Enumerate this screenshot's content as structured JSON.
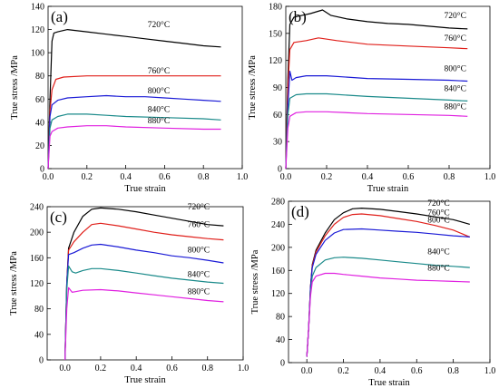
{
  "chart_data": [
    {
      "type": "line",
      "panel_label": "(a)",
      "xlabel": "True strain",
      "ylabel": "True stress /MPa",
      "xlim": [
        0,
        1.0
      ],
      "ylim": [
        0,
        140
      ],
      "xticks": [
        "0.0",
        "0.2",
        "0.4",
        "0.6",
        "0.8",
        "1.0"
      ],
      "yticks": [
        "0",
        "20",
        "40",
        "60",
        "80",
        "100",
        "120",
        "140"
      ],
      "series": [
        {
          "name": "720°C",
          "color": "#000000",
          "x": [
            0,
            0.01,
            0.02,
            0.03,
            0.05,
            0.1,
            0.2,
            0.3,
            0.4,
            0.5,
            0.6,
            0.7,
            0.8,
            0.89
          ],
          "y": [
            0,
            60,
            110,
            117,
            118,
            120,
            118,
            116,
            114,
            112,
            110,
            108,
            106,
            105
          ]
        },
        {
          "name": "760°C",
          "color": "#e0201b",
          "x": [
            0,
            0.01,
            0.02,
            0.04,
            0.08,
            0.2,
            0.4,
            0.6,
            0.8,
            0.89
          ],
          "y": [
            0,
            50,
            68,
            77,
            79,
            80,
            80,
            80,
            80,
            80
          ]
        },
        {
          "name": "800°C",
          "color": "#1a1ad6",
          "x": [
            0,
            0.01,
            0.02,
            0.05,
            0.1,
            0.2,
            0.3,
            0.4,
            0.5,
            0.6,
            0.7,
            0.8,
            0.89
          ],
          "y": [
            0,
            45,
            55,
            59,
            61,
            62,
            63,
            62,
            62,
            61,
            60,
            59,
            58
          ]
        },
        {
          "name": "840°C",
          "color": "#1a8a8a",
          "x": [
            0,
            0.01,
            0.02,
            0.05,
            0.1,
            0.2,
            0.3,
            0.4,
            0.6,
            0.8,
            0.89
          ],
          "y": [
            0,
            35,
            42,
            45,
            47,
            47,
            46,
            45,
            44,
            43,
            42
          ]
        },
        {
          "name": "880°C",
          "color": "#e020e0",
          "x": [
            0,
            0.01,
            0.02,
            0.05,
            0.1,
            0.2,
            0.3,
            0.4,
            0.6,
            0.8,
            0.89
          ],
          "y": [
            0,
            28,
            32,
            35,
            36,
            37,
            37,
            36,
            35,
            34,
            34
          ]
        }
      ],
      "labels": [
        "720°C",
        "760°C",
        "800°C",
        "840°C",
        "880°C"
      ]
    },
    {
      "type": "line",
      "panel_label": "(b)",
      "xlabel": "True strain",
      "ylabel": "True stress /MPa",
      "xlim": [
        0,
        1.0
      ],
      "ylim": [
        0,
        180
      ],
      "xticks": [
        "0.0",
        "0.2",
        "0.4",
        "0.6",
        "0.8",
        "1.0"
      ],
      "yticks": [
        "0",
        "30",
        "60",
        "90",
        "120",
        "150",
        "180"
      ],
      "series": [
        {
          "name": "720°C",
          "color": "#000000",
          "x": [
            0,
            0.01,
            0.02,
            0.04,
            0.08,
            0.12,
            0.18,
            0.22,
            0.3,
            0.4,
            0.5,
            0.6,
            0.7,
            0.8,
            0.89
          ],
          "y": [
            0,
            100,
            160,
            168,
            170,
            172,
            176,
            170,
            166,
            163,
            161,
            160,
            158,
            156,
            155
          ]
        },
        {
          "name": "760°C",
          "color": "#e0201b",
          "x": [
            0,
            0.01,
            0.02,
            0.04,
            0.1,
            0.16,
            0.25,
            0.4,
            0.6,
            0.8,
            0.89
          ],
          "y": [
            0,
            90,
            132,
            140,
            142,
            145,
            142,
            138,
            136,
            134,
            133
          ]
        },
        {
          "name": "800°C",
          "color": "#1a1ad6",
          "x": [
            0,
            0.01,
            0.02,
            0.03,
            0.05,
            0.1,
            0.2,
            0.4,
            0.6,
            0.8,
            0.89
          ],
          "y": [
            0,
            70,
            108,
            98,
            101,
            103,
            103,
            100,
            99,
            98,
            97
          ]
        },
        {
          "name": "840°C",
          "color": "#1a8a8a",
          "x": [
            0,
            0.01,
            0.02,
            0.05,
            0.1,
            0.2,
            0.4,
            0.6,
            0.8,
            0.89
          ],
          "y": [
            0,
            60,
            78,
            82,
            83,
            83,
            80,
            78,
            76,
            75
          ]
        },
        {
          "name": "880°C",
          "color": "#e020e0",
          "x": [
            0,
            0.01,
            0.02,
            0.05,
            0.1,
            0.2,
            0.4,
            0.6,
            0.8,
            0.89
          ],
          "y": [
            0,
            45,
            58,
            62,
            63,
            63,
            61,
            60,
            59,
            58
          ]
        }
      ],
      "labels": [
        "720°C",
        "760°C",
        "800°C",
        "840°C",
        "880°C"
      ]
    },
    {
      "type": "line",
      "panel_label": "(c)",
      "xlabel": "True strain",
      "ylabel": "True stress /MPa",
      "xlim": [
        -0.1,
        1.0
      ],
      "ylim": [
        0,
        240
      ],
      "xticks": [
        "0.0",
        "0.2",
        "0.4",
        "0.6",
        "0.8",
        "1.0"
      ],
      "yticks": [
        "0",
        "40",
        "80",
        "120",
        "160",
        "200",
        "240"
      ],
      "series": [
        {
          "name": "720°C",
          "color": "#000000",
          "x": [
            0,
            0.01,
            0.02,
            0.05,
            0.1,
            0.15,
            0.2,
            0.3,
            0.4,
            0.5,
            0.6,
            0.7,
            0.8,
            0.89
          ],
          "y": [
            0,
            120,
            175,
            200,
            225,
            236,
            238,
            236,
            232,
            227,
            222,
            217,
            212,
            210
          ]
        },
        {
          "name": "760°C",
          "color": "#e0201b",
          "x": [
            0,
            0.01,
            0.02,
            0.05,
            0.1,
            0.15,
            0.2,
            0.3,
            0.4,
            0.5,
            0.6,
            0.7,
            0.8,
            0.89
          ],
          "y": [
            0,
            120,
            172,
            185,
            200,
            212,
            214,
            210,
            205,
            200,
            196,
            193,
            190,
            188
          ]
        },
        {
          "name": "800°C",
          "color": "#1a1ad6",
          "x": [
            0,
            0.01,
            0.02,
            0.05,
            0.1,
            0.15,
            0.2,
            0.3,
            0.4,
            0.5,
            0.6,
            0.7,
            0.8,
            0.89
          ],
          "y": [
            0,
            120,
            165,
            168,
            175,
            180,
            181,
            177,
            172,
            168,
            163,
            160,
            156,
            152
          ]
        },
        {
          "name": "840°C",
          "color": "#1a8a8a",
          "x": [
            0,
            0.01,
            0.02,
            0.04,
            0.06,
            0.1,
            0.15,
            0.2,
            0.3,
            0.4,
            0.5,
            0.6,
            0.7,
            0.8,
            0.89
          ],
          "y": [
            0,
            110,
            147,
            138,
            136,
            140,
            143,
            143,
            140,
            136,
            132,
            128,
            125,
            122,
            120
          ]
        },
        {
          "name": "880°C",
          "color": "#e020e0",
          "x": [
            0,
            0.01,
            0.02,
            0.04,
            0.06,
            0.1,
            0.2,
            0.3,
            0.4,
            0.5,
            0.6,
            0.7,
            0.8,
            0.89
          ],
          "y": [
            0,
            80,
            113,
            106,
            107,
            109,
            110,
            108,
            105,
            102,
            99,
            96,
            93,
            91
          ]
        }
      ],
      "labels": [
        "720°C",
        "760°C",
        "800°C",
        "840°C",
        "880°C"
      ]
    },
    {
      "type": "line",
      "panel_label": "(d)",
      "xlabel": "True strain",
      "ylabel": "True stress /MPa",
      "xlim": [
        -0.1,
        1.0
      ],
      "ylim": [
        0,
        280
      ],
      "xticks": [
        "0.0",
        "0.2",
        "0.4",
        "0.6",
        "0.8",
        "1.0"
      ],
      "yticks": [
        "0",
        "40",
        "80",
        "120",
        "160",
        "200",
        "240",
        "280"
      ],
      "series": [
        {
          "name": "720°C",
          "color": "#000000",
          "x": [
            0,
            0.01,
            0.02,
            0.03,
            0.05,
            0.1,
            0.15,
            0.2,
            0.25,
            0.3,
            0.4,
            0.5,
            0.6,
            0.7,
            0.8,
            0.89
          ],
          "y": [
            10,
            60,
            130,
            170,
            195,
            225,
            248,
            260,
            267,
            268,
            266,
            262,
            258,
            253,
            248,
            240
          ]
        },
        {
          "name": "760°C",
          "color": "#e0201b",
          "x": [
            0,
            0.01,
            0.02,
            0.03,
            0.05,
            0.1,
            0.15,
            0.2,
            0.25,
            0.3,
            0.4,
            0.5,
            0.6,
            0.7,
            0.8,
            0.89
          ],
          "y": [
            10,
            60,
            130,
            168,
            192,
            220,
            240,
            252,
            257,
            258,
            255,
            250,
            245,
            238,
            230,
            218
          ]
        },
        {
          "name": "800°C",
          "color": "#1a1ad6",
          "x": [
            0,
            0.01,
            0.02,
            0.03,
            0.05,
            0.1,
            0.15,
            0.2,
            0.3,
            0.4,
            0.5,
            0.6,
            0.7,
            0.8,
            0.89
          ],
          "y": [
            10,
            60,
            130,
            165,
            188,
            212,
            225,
            231,
            232,
            230,
            228,
            226,
            223,
            220,
            218
          ]
        },
        {
          "name": "840°C",
          "color": "#1a8a8a",
          "x": [
            0,
            0.01,
            0.02,
            0.03,
            0.05,
            0.1,
            0.15,
            0.2,
            0.3,
            0.4,
            0.5,
            0.6,
            0.7,
            0.8,
            0.89
          ],
          "y": [
            10,
            60,
            120,
            150,
            165,
            178,
            182,
            183,
            181,
            178,
            175,
            172,
            169,
            167,
            165
          ]
        },
        {
          "name": "880°C",
          "color": "#e020e0",
          "x": [
            0,
            0.01,
            0.02,
            0.03,
            0.05,
            0.1,
            0.15,
            0.2,
            0.3,
            0.4,
            0.5,
            0.6,
            0.7,
            0.8,
            0.89
          ],
          "y": [
            10,
            60,
            115,
            140,
            150,
            155,
            155,
            153,
            150,
            147,
            145,
            143,
            142,
            141,
            140
          ]
        }
      ],
      "labels": [
        "720°C",
        "760°C",
        "800°C",
        "840°C",
        "880°C"
      ]
    }
  ]
}
